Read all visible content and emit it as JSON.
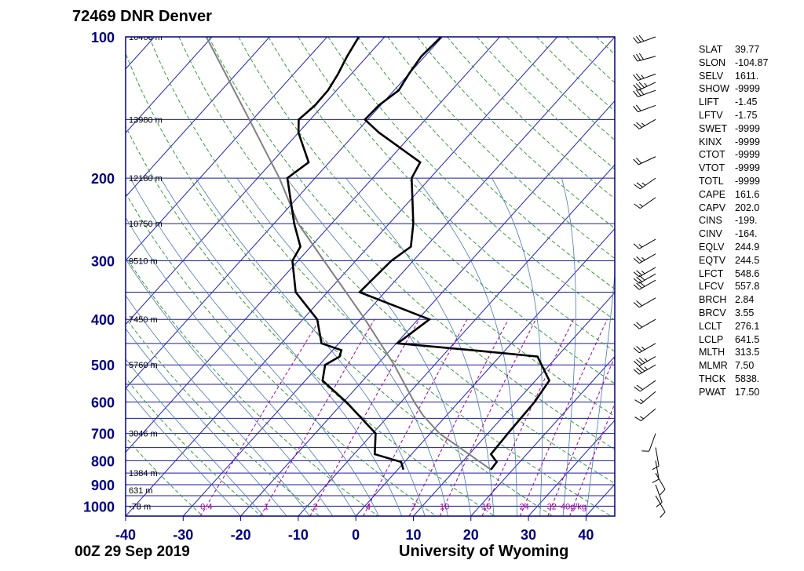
{
  "header": {
    "station": "72469 DNR Denver"
  },
  "footer": {
    "date": "00Z 29 Sep 2019",
    "credit": "University of Wyoming"
  },
  "colors": {
    "frame": "#000080",
    "isobar": "#1a1aa0",
    "isotherm": "#2020c0",
    "dry_adiabat": "#3a9a3a",
    "moist_adiabat": "#4a78b0",
    "mixing_ratio": "#a000a0",
    "profile": "#000000",
    "parcel": "#808080"
  },
  "chart_data": {
    "type": "skew-t log-p sounding",
    "x_ticks": [
      -40,
      -30,
      -20,
      -10,
      0,
      10,
      20,
      30,
      40
    ],
    "xlim": [
      -40,
      45
    ],
    "pressure_ticks": [
      100,
      200,
      300,
      400,
      500,
      600,
      700,
      800,
      900,
      1000
    ],
    "ylim": [
      100,
      1050
    ],
    "heights": [
      {
        "p": 100,
        "label": "16460 m"
      },
      {
        "p": 150,
        "label": "13980 m"
      },
      {
        "p": 200,
        "label": "12180 m"
      },
      {
        "p": 250,
        "label": "10750 m"
      },
      {
        "p": 300,
        "label": "9510 m"
      },
      {
        "p": 400,
        "label": "7450 m"
      },
      {
        "p": 500,
        "label": "5760 m"
      },
      {
        "p": 700,
        "label": "3046 m"
      },
      {
        "p": 850,
        "label": "1384 m"
      },
      {
        "p": 925,
        "label": "631 m"
      },
      {
        "p": 1000,
        "label": "-78 m"
      }
    ],
    "mixing_ratio_labels": [
      "0.4",
      "1",
      "2",
      "4",
      "7",
      "10",
      "16",
      "24",
      "32",
      "40g/kg"
    ],
    "temperature": [
      {
        "p": 836,
        "t": 16.2
      },
      {
        "p": 805,
        "t": 16.0
      },
      {
        "p": 775,
        "t": 13.8
      },
      {
        "p": 700,
        "t": 13.5
      },
      {
        "p": 600,
        "t": 13.2
      },
      {
        "p": 540,
        "t": 12.4
      },
      {
        "p": 500,
        "t": 8.6
      },
      {
        "p": 480,
        "t": 6.6
      },
      {
        "p": 465,
        "t": -5.8
      },
      {
        "p": 450,
        "t": -19.8
      },
      {
        "p": 400,
        "t": -18.0
      },
      {
        "p": 350,
        "t": -34.4
      },
      {
        "p": 300,
        "t": -33.8
      },
      {
        "p": 280,
        "t": -32.6
      },
      {
        "p": 250,
        "t": -35.8
      },
      {
        "p": 200,
        "t": -43.2
      },
      {
        "p": 185,
        "t": -44.2
      },
      {
        "p": 160,
        "t": -56.0
      },
      {
        "p": 150,
        "t": -60.5
      },
      {
        "p": 140,
        "t": -60.3
      },
      {
        "p": 130,
        "t": -59.2
      },
      {
        "p": 120,
        "t": -60.0
      },
      {
        "p": 110,
        "t": -60.6
      },
      {
        "p": 100,
        "t": -60.2
      }
    ],
    "dewpoint": [
      {
        "p": 836,
        "t": 1.0
      },
      {
        "p": 805,
        "t": -0.6
      },
      {
        "p": 775,
        "t": -6.4
      },
      {
        "p": 700,
        "t": -9.5
      },
      {
        "p": 600,
        "t": -19.5
      },
      {
        "p": 540,
        "t": -27.0
      },
      {
        "p": 500,
        "t": -29.0
      },
      {
        "p": 480,
        "t": -27.8
      },
      {
        "p": 465,
        "t": -28.5
      },
      {
        "p": 450,
        "t": -33.0
      },
      {
        "p": 400,
        "t": -37.5
      },
      {
        "p": 350,
        "t": -45.5
      },
      {
        "p": 300,
        "t": -51.0
      },
      {
        "p": 280,
        "t": -51.8
      },
      {
        "p": 250,
        "t": -56.5
      },
      {
        "p": 200,
        "t": -64.8
      },
      {
        "p": 185,
        "t": -63.6
      },
      {
        "p": 160,
        "t": -70.0
      },
      {
        "p": 150,
        "t": -72.0
      },
      {
        "p": 140,
        "t": -71.4
      },
      {
        "p": 130,
        "t": -71.5
      },
      {
        "p": 120,
        "t": -72.3
      },
      {
        "p": 110,
        "t": -73.5
      },
      {
        "p": 100,
        "t": -74.5
      }
    ],
    "parcel": [
      {
        "p": 836,
        "t": 16.2
      },
      {
        "p": 800,
        "t": 12.6
      },
      {
        "p": 700,
        "t": 1.6
      },
      {
        "p": 641.5,
        "t": -4.0
      },
      {
        "p": 600,
        "t": -7.7
      },
      {
        "p": 500,
        "t": -17.0
      },
      {
        "p": 400,
        "t": -29.2
      },
      {
        "p": 300,
        "t": -45.5
      },
      {
        "p": 250,
        "t": -55.8
      },
      {
        "p": 200,
        "t": -66.2
      },
      {
        "p": 150,
        "t": -80.6
      },
      {
        "p": 100,
        "t": -101.0
      }
    ],
    "wind_barbs": [
      {
        "p": 100,
        "dir": 250,
        "kt": 30
      },
      {
        "p": 110,
        "dir": 255,
        "kt": 30
      },
      {
        "p": 120,
        "dir": 250,
        "kt": 25
      },
      {
        "p": 125,
        "dir": 245,
        "kt": 35
      },
      {
        "p": 130,
        "dir": 250,
        "kt": 30
      },
      {
        "p": 140,
        "dir": 250,
        "kt": 20
      },
      {
        "p": 150,
        "dir": 240,
        "kt": 25
      },
      {
        "p": 180,
        "dir": 245,
        "kt": 20
      },
      {
        "p": 200,
        "dir": 235,
        "kt": 25
      },
      {
        "p": 220,
        "dir": 235,
        "kt": 15
      },
      {
        "p": 270,
        "dir": 240,
        "kt": 15
      },
      {
        "p": 290,
        "dir": 240,
        "kt": 25
      },
      {
        "p": 310,
        "dir": 240,
        "kt": 25
      },
      {
        "p": 320,
        "dir": 240,
        "kt": 30
      },
      {
        "p": 330,
        "dir": 240,
        "kt": 30
      },
      {
        "p": 360,
        "dir": 240,
        "kt": 20
      },
      {
        "p": 400,
        "dir": 240,
        "kt": 20
      },
      {
        "p": 450,
        "dir": 240,
        "kt": 25
      },
      {
        "p": 480,
        "dir": 240,
        "kt": 35
      },
      {
        "p": 500,
        "dir": 240,
        "kt": 35
      },
      {
        "p": 540,
        "dir": 235,
        "kt": 20
      },
      {
        "p": 570,
        "dir": 230,
        "kt": 15
      },
      {
        "p": 620,
        "dir": 230,
        "kt": 15
      },
      {
        "p": 700,
        "dir": 200,
        "kt": 10
      },
      {
        "p": 750,
        "dir": 170,
        "kt": 10
      },
      {
        "p": 800,
        "dir": 170,
        "kt": 10
      },
      {
        "p": 850,
        "dir": 150,
        "kt": 10
      },
      {
        "p": 900,
        "dir": 160,
        "kt": 10
      },
      {
        "p": 950,
        "dir": 150,
        "kt": 10
      }
    ]
  },
  "indices": [
    {
      "key": "SLAT",
      "value": "39.77"
    },
    {
      "key": "SLON",
      "value": "-104.87"
    },
    {
      "key": "SELV",
      "value": "1611."
    },
    {
      "key": "SHOW",
      "value": "-9999"
    },
    {
      "key": "LIFT",
      "value": "-1.45"
    },
    {
      "key": "LFTV",
      "value": "-1.75"
    },
    {
      "key": "SWET",
      "value": "-9999"
    },
    {
      "key": "KINX",
      "value": "-9999"
    },
    {
      "key": "CTOT",
      "value": "-9999"
    },
    {
      "key": "VTOT",
      "value": "-9999"
    },
    {
      "key": "TOTL",
      "value": "-9999"
    },
    {
      "key": "CAPE",
      "value": "161.6"
    },
    {
      "key": "CAPV",
      "value": "202.0"
    },
    {
      "key": "CINS",
      "value": "-199."
    },
    {
      "key": "CINV",
      "value": "-164."
    },
    {
      "key": "EQLV",
      "value": "244.9"
    },
    {
      "key": "EQTV",
      "value": "244.5"
    },
    {
      "key": "LFCT",
      "value": "548.6"
    },
    {
      "key": "LFCV",
      "value": "557.8"
    },
    {
      "key": "BRCH",
      "value": "2.84"
    },
    {
      "key": "BRCV",
      "value": "3.55"
    },
    {
      "key": "LCLT",
      "value": "276.1"
    },
    {
      "key": "LCLP",
      "value": "641.5"
    },
    {
      "key": "MLTH",
      "value": "313.5"
    },
    {
      "key": "MLMR",
      "value": "7.50"
    },
    {
      "key": "THCK",
      "value": "5838."
    },
    {
      "key": "PWAT",
      "value": "17.50"
    }
  ]
}
